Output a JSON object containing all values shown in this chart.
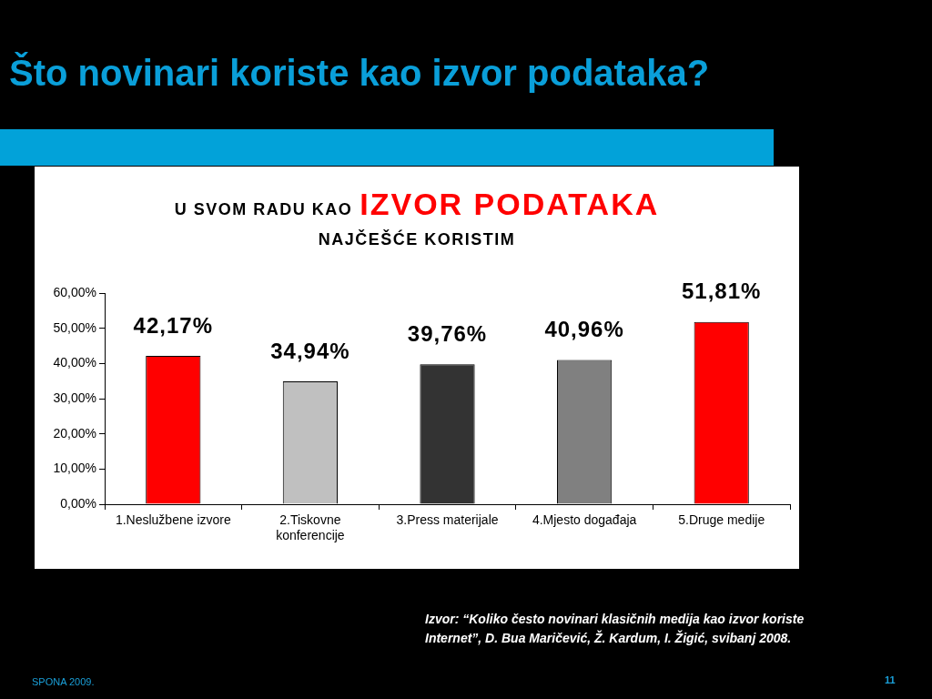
{
  "chart_data": {
    "type": "bar",
    "title": "Što novinari koriste kao izvor podataka?",
    "categories": [
      "1.Neslužbene izvore",
      "2.Tiskovne konferencije",
      "3.Press materijale",
      "4.Mjesto događaja",
      "5.Druge medije"
    ],
    "values": [
      42.17,
      34.94,
      39.76,
      40.96,
      51.81
    ],
    "colors": [
      "#ff0000",
      "#c0c0c0",
      "#333333",
      "#808080",
      "#ff0000"
    ],
    "value_labels": [
      "42,17%",
      "34,94%",
      "39,76%",
      "40,96%",
      "51,81%"
    ],
    "ylim": [
      0,
      60
    ],
    "yticks": [
      {
        "value": 0,
        "label": "0,00%"
      },
      {
        "value": 10,
        "label": "10,00%"
      },
      {
        "value": 20,
        "label": "20,00%"
      },
      {
        "value": 30,
        "label": "30,00%"
      },
      {
        "value": 40,
        "label": "40,00%"
      },
      {
        "value": 50,
        "label": "50,00%"
      },
      {
        "value": 60,
        "label": "60,00%"
      }
    ],
    "annotations": [
      "U SVOM RADU KAO",
      "IZVOR PODATAKA",
      "NAJČEŠĆE KORISTIM",
      "Izvor: “Koliko često novinari klasičnih medija kao izvor koriste Internet”, D. Bua Maričević, Ž. Kardum, I. Žigić, svibanj 2008.",
      "SPONA 2009.",
      "11"
    ]
  }
}
